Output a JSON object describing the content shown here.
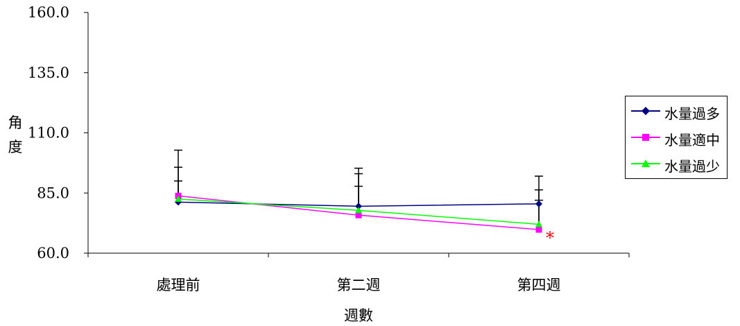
{
  "chart_data": {
    "type": "line",
    "categories": [
      "處理前",
      "第二週",
      "第四週"
    ],
    "series": [
      {
        "name": "水量過多",
        "values": [
          81.2,
          79.5,
          80.5
        ],
        "errors": [
          14.5,
          13.5,
          11.5
        ],
        "color": "#000080",
        "marker": "diamond"
      },
      {
        "name": "水量適中",
        "values": [
          83.8,
          75.8,
          69.8
        ],
        "errors": [
          19.0,
          19.5,
          16.5
        ],
        "color": "#ff00ff",
        "marker": "square"
      },
      {
        "name": "水量過少",
        "values": [
          82.5,
          77.8,
          72.0
        ],
        "errors": [
          7.5,
          10.0,
          10.0
        ],
        "color": "#00ff00",
        "marker": "triangle"
      }
    ],
    "yticks": [
      "160.0",
      "135.0",
      "110.0",
      "85.0",
      "60.0"
    ],
    "ylim": [
      60,
      160
    ],
    "ylabel": "角度",
    "xlabel": "週數",
    "annotation": {
      "text": "*",
      "color": "#ff0000",
      "category": "第四週"
    },
    "legend_position": "right",
    "grid": false
  }
}
